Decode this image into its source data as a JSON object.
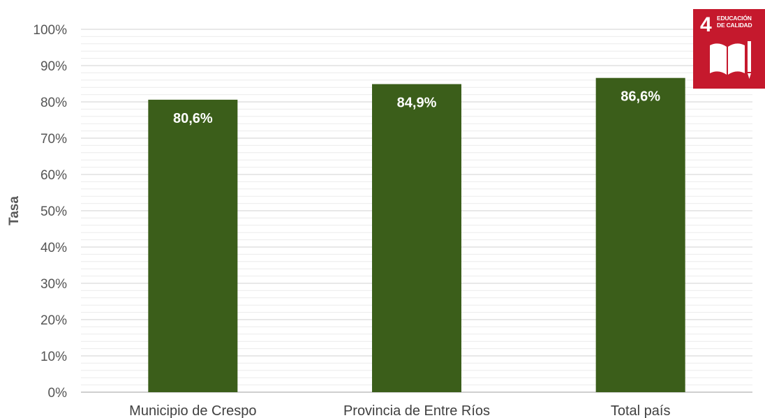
{
  "chart_data": {
    "type": "bar",
    "categories": [
      "Municipio de Crespo",
      "Provincia de Entre Ríos",
      "Total país"
    ],
    "values": [
      80.6,
      84.9,
      86.6
    ],
    "value_labels": [
      "80,6%",
      "84,9%",
      "86,6%"
    ],
    "title": "",
    "xlabel": "",
    "ylabel": "Tasa",
    "ylim": [
      0,
      100
    ],
    "yticks": [
      0,
      10,
      20,
      30,
      40,
      50,
      60,
      70,
      80,
      90,
      100
    ],
    "ytick_labels": [
      "0%",
      "10%",
      "20%",
      "30%",
      "40%",
      "50%",
      "60%",
      "70%",
      "80%",
      "90%",
      "100%"
    ],
    "grid": true,
    "bar_color": "#3b5e1a"
  },
  "sdg_logo": {
    "number": "4",
    "text_line1": "EDUCACIÓN",
    "text_line2": "DE CALIDAD",
    "color": "#c5192d",
    "icon": "book-pencil-icon"
  }
}
